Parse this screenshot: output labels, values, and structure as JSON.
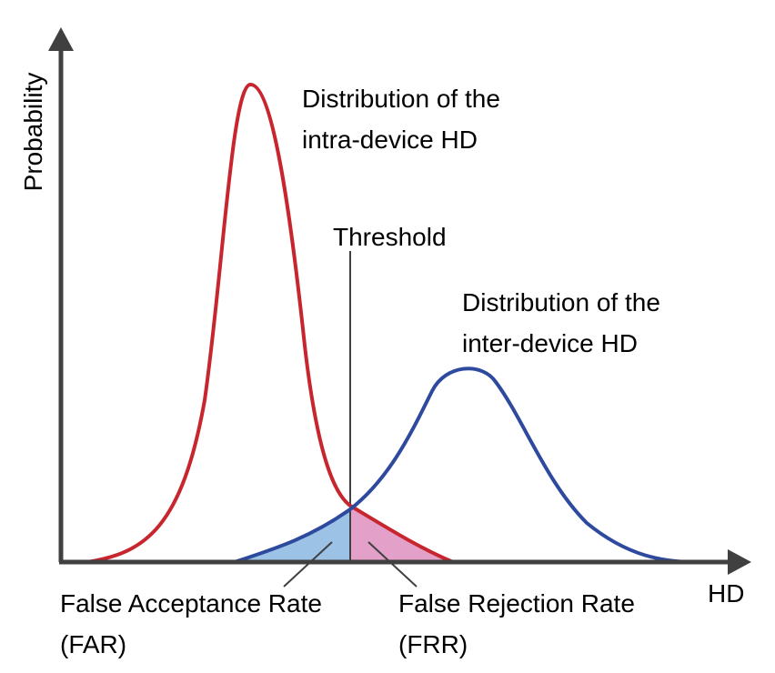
{
  "axes": {
    "y_label": "Probability",
    "x_label": "HD"
  },
  "threshold_label": "Threshold",
  "intra_device": {
    "label_line1": "Distribution of the",
    "label_line2": "intra-device HD",
    "color": "#c8262e"
  },
  "inter_device": {
    "label_line1": "Distribution of the",
    "label_line2": "inter-device HD",
    "color": "#2e4a9e"
  },
  "far": {
    "label_line1": "False Acceptance Rate",
    "label_line2": "(FAR)",
    "fill": "#9cc3e6"
  },
  "frr": {
    "label_line1": "False Rejection Rate",
    "label_line2": "(FRR)",
    "fill": "#e3a0c8"
  },
  "colors": {
    "axis": "#404040",
    "threshold_line": "#404040",
    "leader_line": "#404040"
  }
}
